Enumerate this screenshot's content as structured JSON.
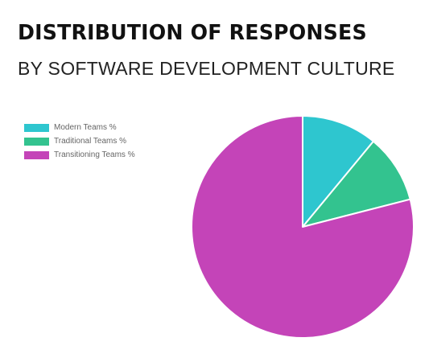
{
  "chart_data": {
    "type": "pie",
    "title": "DISTRIBUTION OF RESPONSES",
    "subtitle": "BY SOFTWARE DEVELOPMENT CULTURE",
    "series": [
      {
        "name": "Modern Teams %",
        "value": 11,
        "color": "#2ec6cf"
      },
      {
        "name": "Traditional Teams %",
        "value": 10,
        "color": "#33c38f"
      },
      {
        "name": "Transitioning Teams %",
        "value": 79,
        "color": "#c444b8"
      }
    ],
    "legend_position": "top-left",
    "start_angle": "12 o'clock",
    "direction": "clockwise"
  }
}
